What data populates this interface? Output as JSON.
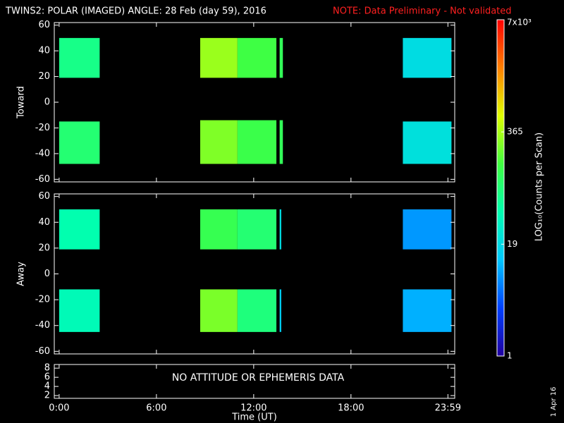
{
  "title": "TWINS2: POLAR (IMAGED) ANGLE: 28 Feb (day  59), 2016",
  "note": "NOTE: Data Preliminary - Not validated",
  "stamp": "1 Apr 16",
  "colorbar": {
    "label": "LOG₁₀(Counts per Scan)",
    "scale": "log",
    "lim": [
      1,
      7000
    ],
    "ticks": [
      1,
      19,
      365,
      {
        "value": 7000,
        "label": "7x10³"
      }
    ],
    "colormap": [
      "#2000a0",
      "#0040ff",
      "#00c8ff",
      "#00ffb0",
      "#40ff40",
      "#e0ff00",
      "#ff8000",
      "#ff0000"
    ]
  },
  "chart_data": [
    {
      "type": "heatmap",
      "ylabel": "Toward",
      "xlim": [
        -0.3,
        24.4
      ],
      "ylim": [
        -62,
        62
      ],
      "xticks": [
        {
          "value": 0,
          "label": "0:00"
        },
        {
          "value": 6,
          "label": "6:00"
        },
        {
          "value": 12,
          "label": "12:00"
        },
        {
          "value": 18,
          "label": "18:00"
        },
        {
          "value": 23.98,
          "label": "23:59"
        }
      ],
      "yticks": [
        -60,
        -40,
        -20,
        0,
        20,
        40,
        60
      ],
      "cells": [
        {
          "x": [
            0,
            2.5
          ],
          "y": [
            19,
            50
          ],
          "value": 70
        },
        {
          "x": [
            0,
            2.5
          ],
          "y": [
            -48,
            -15
          ],
          "value": 90
        },
        {
          "x": [
            8.7,
            11
          ],
          "y": [
            19,
            50
          ],
          "value": 320
        },
        {
          "x": [
            8.7,
            11
          ],
          "y": [
            -48,
            -14
          ],
          "value": 260
        },
        {
          "x": [
            11,
            13.4
          ],
          "y": [
            19,
            50
          ],
          "value": 150
        },
        {
          "x": [
            11,
            13.4
          ],
          "y": [
            -48,
            -14
          ],
          "value": 140
        },
        {
          "x": [
            13.6,
            13.8
          ],
          "y": [
            19,
            50
          ],
          "value": 120
        },
        {
          "x": [
            13.6,
            13.8
          ],
          "y": [
            -48,
            -14
          ],
          "value": 120
        },
        {
          "x": [
            21.2,
            24.2
          ],
          "y": [
            19,
            50
          ],
          "value": 20
        },
        {
          "x": [
            21.2,
            24.2
          ],
          "y": [
            -48,
            -15
          ],
          "value": 22
        }
      ]
    },
    {
      "type": "heatmap",
      "ylabel": "Away",
      "xlim": [
        -0.3,
        24.4
      ],
      "ylim": [
        -62,
        62
      ],
      "xticks": [
        {
          "value": 0,
          "label": "0:00"
        },
        {
          "value": 6,
          "label": "6:00"
        },
        {
          "value": 12,
          "label": "12:00"
        },
        {
          "value": 18,
          "label": "18:00"
        },
        {
          "value": 23.98,
          "label": "23:59"
        }
      ],
      "yticks": [
        -60,
        -40,
        -20,
        0,
        20,
        40,
        60
      ],
      "cells": [
        {
          "x": [
            0,
            2.5
          ],
          "y": [
            19,
            50
          ],
          "value": 45
        },
        {
          "x": [
            0,
            2.5
          ],
          "y": [
            -45,
            -12
          ],
          "value": 40
        },
        {
          "x": [
            8.7,
            11
          ],
          "y": [
            19,
            50
          ],
          "value": 130
        },
        {
          "x": [
            8.7,
            11
          ],
          "y": [
            -45,
            -12
          ],
          "value": 250
        },
        {
          "x": [
            11,
            13.4
          ],
          "y": [
            19,
            50
          ],
          "value": 90
        },
        {
          "x": [
            11,
            13.4
          ],
          "y": [
            -45,
            -12
          ],
          "value": 80
        },
        {
          "x": [
            13.6,
            13.7
          ],
          "y": [
            19,
            50
          ],
          "value": 20
        },
        {
          "x": [
            13.6,
            13.7
          ],
          "y": [
            -45,
            -12
          ],
          "value": 15
        },
        {
          "x": [
            21.2,
            24.2
          ],
          "y": [
            19,
            50
          ],
          "value": 8
        },
        {
          "x": [
            21.2,
            24.2
          ],
          "y": [
            -45,
            -12
          ],
          "value": 10
        }
      ]
    },
    {
      "type": "empty",
      "xlabel": "Time (UT)",
      "message": "NO ATTITUDE OR EPHEMERIS DATA",
      "xlim": [
        -0.3,
        24.4
      ],
      "ylim": [
        1.4,
        8.8
      ],
      "xticks": [
        {
          "value": 0,
          "label": "0:00"
        },
        {
          "value": 6,
          "label": "6:00"
        },
        {
          "value": 12,
          "label": "12:00"
        },
        {
          "value": 18,
          "label": "18:00"
        },
        {
          "value": 23.98,
          "label": "23:59"
        }
      ],
      "yticks": [
        2,
        4,
        6,
        8
      ]
    }
  ]
}
